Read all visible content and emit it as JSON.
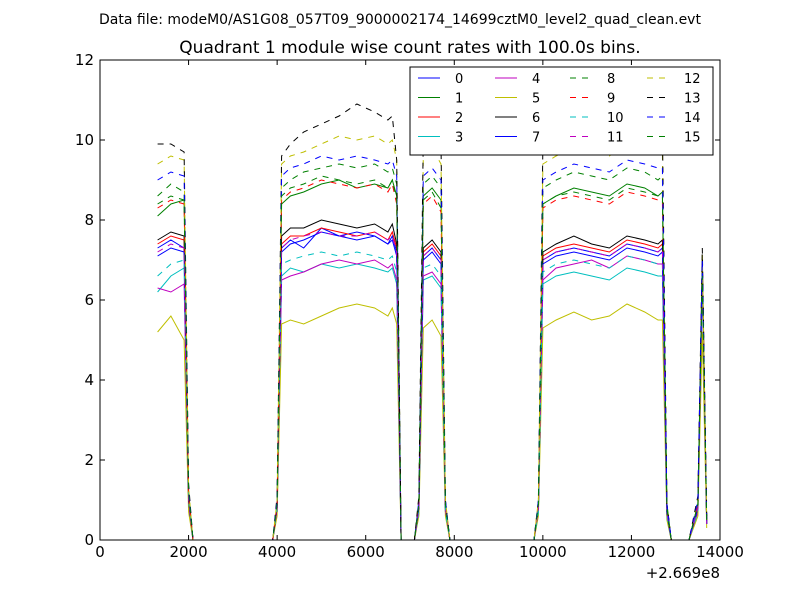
{
  "header": {
    "datafile": "Data file: modeM0/AS1G08_057T09_9000002174_14699cztM0_level2_quad_clean.evt"
  },
  "chart_data": {
    "type": "line",
    "title": "Quadrant 1 module wise count rates with 100.0s bins.",
    "xlabel": "",
    "ylabel": "",
    "x_offset_label": "+2.669e8",
    "xlim": [
      0,
      14000
    ],
    "ylim": [
      0,
      12
    ],
    "xticks": [
      0,
      2000,
      4000,
      6000,
      8000,
      10000,
      12000,
      14000
    ],
    "xtick_labels": [
      "0",
      "2000",
      "4000",
      "6000",
      "8000",
      "10000",
      "12000",
      "14000"
    ],
    "yticks": [
      0,
      2,
      4,
      6,
      8,
      10,
      12
    ],
    "ytick_labels": [
      "0",
      "2",
      "4",
      "6",
      "8",
      "10",
      "12"
    ],
    "grid": false,
    "legend_position": "top-right",
    "x_segments": [
      [
        1300,
        1600,
        1900,
        2000,
        2100,
        3000,
        3900,
        4000,
        4100,
        4300,
        4600,
        5000,
        5400,
        5800,
        6200,
        6500,
        6600,
        6700,
        6800,
        7100,
        7200,
        7300,
        7500,
        7700,
        7800,
        7900,
        8000,
        9000,
        9800,
        9900,
        10000,
        10300,
        10700,
        11100,
        11500,
        11900,
        12300,
        12600,
        12700,
        12800,
        12900,
        13300,
        13500,
        13600,
        13700
      ]
    ],
    "series": [
      {
        "name": "0",
        "color": "#0000ff",
        "dash": "solid",
        "values": [
          7.3,
          7.5,
          7.3,
          1.0,
          0,
          0,
          0,
          0.8,
          7.3,
          7.5,
          7.3,
          7.8,
          7.6,
          7.7,
          7.6,
          7.4,
          7.6,
          7.2,
          0,
          0,
          0.8,
          7.1,
          7.3,
          7.0,
          0.8,
          0,
          0,
          0,
          0,
          0.8,
          7.0,
          7.2,
          7.3,
          7.2,
          7.1,
          7.4,
          7.3,
          7.2,
          7.3,
          0.7,
          0,
          0,
          0.8,
          7.0,
          0.4
        ]
      },
      {
        "name": "1",
        "color": "#008000",
        "dash": "solid",
        "values": [
          8.1,
          8.4,
          8.5,
          1.2,
          0,
          0,
          0,
          0.9,
          8.4,
          8.6,
          8.7,
          8.9,
          9.0,
          8.8,
          8.9,
          8.8,
          9.0,
          8.6,
          0,
          0,
          0.9,
          8.6,
          8.8,
          8.5,
          0.9,
          0,
          0,
          0,
          0,
          0.9,
          8.4,
          8.6,
          8.8,
          8.7,
          8.6,
          8.9,
          8.8,
          8.6,
          8.7,
          0.9,
          0,
          0,
          0.9,
          6.6,
          0.5
        ]
      },
      {
        "name": "2",
        "color": "#ff0000",
        "dash": "solid",
        "values": [
          7.4,
          7.6,
          7.5,
          1.0,
          0,
          0,
          0,
          0.8,
          7.4,
          7.6,
          7.6,
          7.8,
          7.7,
          7.6,
          7.7,
          7.5,
          7.7,
          7.3,
          0,
          0,
          0.8,
          7.2,
          7.4,
          7.1,
          0.8,
          0,
          0,
          0,
          0,
          0.8,
          7.1,
          7.3,
          7.4,
          7.3,
          7.2,
          7.5,
          7.4,
          7.3,
          7.4,
          0.7,
          0,
          0,
          0.8,
          6.9,
          0.4
        ]
      },
      {
        "name": "3",
        "color": "#00bfbf",
        "dash": "solid",
        "values": [
          6.2,
          6.6,
          6.8,
          0.9,
          0,
          0,
          0,
          0.7,
          6.6,
          6.8,
          6.7,
          6.9,
          6.8,
          6.9,
          6.8,
          6.7,
          6.8,
          6.4,
          0,
          0,
          0.7,
          6.5,
          6.6,
          6.3,
          0.7,
          0,
          0,
          0,
          0,
          0.7,
          6.4,
          6.6,
          6.7,
          6.6,
          6.5,
          6.8,
          6.7,
          6.6,
          6.6,
          0.6,
          0,
          0,
          0.7,
          6.3,
          0.4
        ]
      },
      {
        "name": "4",
        "color": "#bf00bf",
        "dash": "solid",
        "values": [
          6.3,
          6.2,
          6.4,
          0.9,
          0,
          0,
          0,
          0.7,
          6.5,
          6.6,
          6.7,
          6.9,
          7.0,
          6.9,
          7.0,
          6.8,
          6.9,
          6.5,
          0,
          0,
          0.7,
          6.6,
          6.7,
          6.4,
          0.7,
          0,
          0,
          0,
          0,
          0.7,
          6.5,
          6.8,
          6.9,
          7.0,
          6.8,
          7.1,
          7.0,
          6.9,
          6.9,
          0.6,
          0,
          0,
          0.7,
          6.5,
          0.4
        ]
      },
      {
        "name": "5",
        "color": "#bfbf00",
        "dash": "solid",
        "values": [
          5.2,
          5.6,
          5.0,
          0.7,
          0,
          0,
          0,
          0.6,
          5.4,
          5.5,
          5.4,
          5.6,
          5.8,
          5.9,
          5.8,
          5.6,
          5.8,
          5.4,
          0,
          0,
          0.6,
          5.3,
          5.5,
          5.1,
          0.6,
          0,
          0,
          0,
          0,
          0.6,
          5.3,
          5.5,
          5.7,
          5.5,
          5.6,
          5.9,
          5.7,
          5.5,
          5.5,
          0.5,
          0,
          0,
          0.6,
          5.2,
          0.3
        ]
      },
      {
        "name": "6",
        "color": "#000000",
        "dash": "solid",
        "values": [
          7.5,
          7.7,
          7.6,
          1.0,
          0,
          0,
          0,
          0.8,
          7.6,
          7.8,
          7.8,
          8.0,
          7.9,
          7.8,
          7.9,
          7.7,
          7.9,
          7.4,
          0,
          0,
          0.8,
          7.3,
          7.5,
          7.2,
          0.8,
          0,
          0,
          0,
          0,
          0.8,
          7.2,
          7.4,
          7.6,
          7.4,
          7.3,
          7.6,
          7.5,
          7.4,
          7.5,
          0.7,
          0,
          0,
          0.8,
          7.0,
          0.4
        ]
      },
      {
        "name": "7",
        "color": "#0000ff",
        "dash": "solid",
        "values": [
          7.1,
          7.3,
          7.2,
          1.0,
          0,
          0,
          0,
          0.8,
          7.2,
          7.4,
          7.5,
          7.7,
          7.6,
          7.5,
          7.6,
          7.4,
          7.5,
          7.1,
          0,
          0,
          0.8,
          7.0,
          7.2,
          6.9,
          0.8,
          0,
          0,
          0,
          0,
          0.8,
          6.9,
          7.1,
          7.2,
          7.1,
          7.0,
          7.3,
          7.2,
          7.1,
          7.2,
          0.7,
          0,
          0,
          0.8,
          6.8,
          0.4
        ]
      },
      {
        "name": "8",
        "color": "#008000",
        "dash": "dashed",
        "values": [
          8.6,
          8.9,
          8.7,
          1.2,
          0,
          0,
          0,
          0.9,
          8.8,
          9.0,
          9.2,
          9.3,
          9.4,
          9.3,
          9.4,
          9.2,
          9.3,
          8.9,
          0,
          0,
          0.9,
          8.9,
          9.1,
          8.8,
          0.9,
          0,
          0,
          0,
          0,
          0.9,
          8.8,
          9.0,
          9.2,
          9.1,
          9.0,
          9.3,
          9.2,
          9.0,
          9.1,
          0.9,
          0,
          0,
          0.9,
          6.7,
          0.5
        ]
      },
      {
        "name": "9",
        "color": "#ff0000",
        "dash": "dashed",
        "values": [
          8.3,
          8.5,
          8.4,
          1.1,
          0,
          0,
          0,
          0.9,
          8.5,
          8.7,
          8.8,
          9.0,
          8.9,
          8.8,
          8.9,
          8.7,
          8.9,
          8.4,
          0,
          0,
          0.9,
          8.4,
          8.6,
          8.2,
          0.9,
          0,
          0,
          0,
          0,
          0.9,
          8.3,
          8.5,
          8.6,
          8.5,
          8.4,
          8.7,
          8.6,
          8.5,
          8.5,
          0.8,
          0,
          0,
          0.9,
          6.5,
          0.5
        ]
      },
      {
        "name": "10",
        "color": "#00bfbf",
        "dash": "dashed",
        "values": [
          6.6,
          6.9,
          7.0,
          1.0,
          0,
          0,
          0,
          0.8,
          6.9,
          7.0,
          7.1,
          7.2,
          7.1,
          7.2,
          7.1,
          7.0,
          7.1,
          6.7,
          0,
          0,
          0.7,
          6.8,
          6.9,
          6.6,
          0.7,
          0,
          0,
          0,
          0,
          0.7,
          6.7,
          6.9,
          7.0,
          6.9,
          6.8,
          7.1,
          7.0,
          6.9,
          6.9,
          0.6,
          0,
          0,
          0.7,
          6.6,
          0.4
        ]
      },
      {
        "name": "11",
        "color": "#bf00bf",
        "dash": "dashed",
        "values": [
          7.2,
          7.4,
          7.3,
          1.0,
          0,
          0,
          0,
          0.8,
          7.3,
          7.5,
          7.6,
          7.7,
          7.6,
          7.6,
          7.7,
          7.5,
          7.6,
          7.2,
          0,
          0,
          0.8,
          7.1,
          7.3,
          7.0,
          0.8,
          0,
          0,
          0,
          0,
          0.8,
          7.0,
          7.2,
          7.3,
          7.2,
          7.1,
          7.4,
          7.3,
          7.2,
          7.3,
          0.7,
          0,
          0,
          0.8,
          6.9,
          0.4
        ]
      },
      {
        "name": "12",
        "color": "#bfbf00",
        "dash": "dashed",
        "values": [
          9.4,
          9.6,
          9.5,
          1.3,
          0,
          0,
          0,
          1.0,
          9.4,
          9.6,
          9.7,
          9.9,
          10.1,
          10.0,
          10.1,
          9.9,
          10.0,
          9.5,
          0,
          0,
          1.0,
          9.6,
          9.8,
          9.4,
          1.0,
          0,
          0,
          0,
          0,
          1.0,
          9.4,
          9.6,
          9.8,
          9.7,
          9.6,
          9.9,
          9.8,
          9.7,
          9.7,
          0.9,
          0,
          0,
          1.0,
          7.2,
          0.5
        ]
      },
      {
        "name": "13",
        "color": "#000000",
        "dash": "dashed",
        "values": [
          9.9,
          9.9,
          9.7,
          1.4,
          0,
          0,
          0,
          1.1,
          9.6,
          9.9,
          10.2,
          10.4,
          10.6,
          10.9,
          10.7,
          10.5,
          10.6,
          9.5,
          0,
          0,
          1.1,
          10.1,
          10.3,
          9.9,
          1.0,
          0,
          0,
          0,
          0,
          1.0,
          9.9,
          10.1,
          10.4,
          10.5,
          10.3,
          10.6,
          10.5,
          10.2,
          10.3,
          0.9,
          0,
          0,
          1.1,
          7.3,
          0.6
        ]
      },
      {
        "name": "14",
        "color": "#0000ff",
        "dash": "dashed",
        "values": [
          9.0,
          9.2,
          9.1,
          1.3,
          0,
          0,
          0,
          1.0,
          9.1,
          9.3,
          9.4,
          9.6,
          9.5,
          9.6,
          9.5,
          9.4,
          9.5,
          9.1,
          0,
          0,
          1.0,
          9.1,
          9.3,
          9.0,
          1.0,
          0,
          0,
          0,
          0,
          1.0,
          9.0,
          9.2,
          9.4,
          9.3,
          9.2,
          9.5,
          9.4,
          9.3,
          9.3,
          0.9,
          0,
          0,
          1.0,
          7.0,
          0.5
        ]
      },
      {
        "name": "15",
        "color": "#008000",
        "dash": "dashed",
        "values": [
          8.4,
          8.6,
          8.5,
          1.2,
          0,
          0,
          0,
          0.9,
          8.6,
          8.8,
          8.9,
          9.1,
          9.0,
          8.9,
          9.0,
          8.8,
          9.0,
          8.5,
          0,
          0,
          0.9,
          8.5,
          8.7,
          8.3,
          0.9,
          0,
          0,
          0,
          0,
          0.9,
          8.4,
          8.6,
          8.7,
          8.6,
          8.5,
          8.8,
          8.7,
          8.6,
          8.6,
          0.8,
          0,
          0,
          0.9,
          6.6,
          0.5
        ]
      }
    ]
  }
}
